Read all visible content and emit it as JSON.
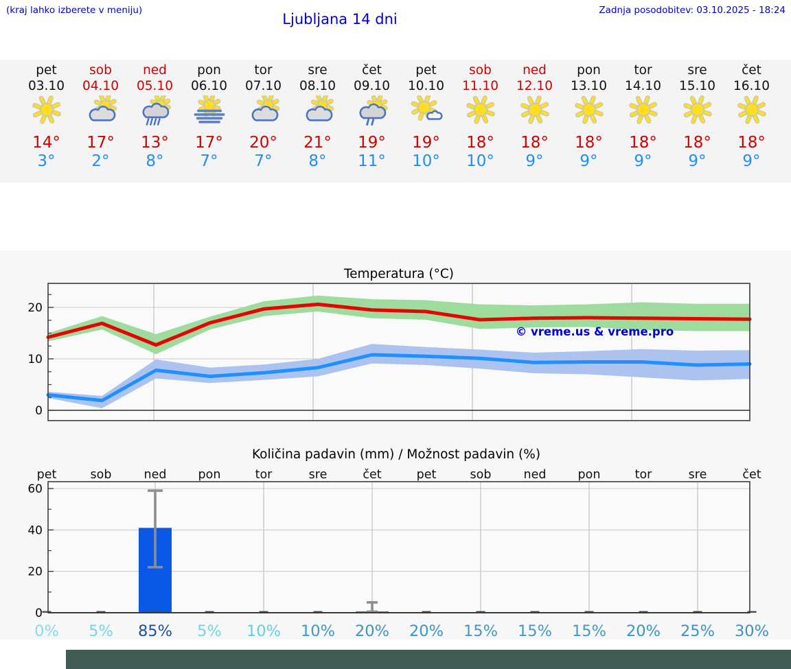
{
  "header": {
    "left_note": "(kraj lahko izberete v meniju)",
    "title": "Ljubljana 14 dni",
    "last_update": "Zadnja posodobitev: 03.10.2025 - 18:24"
  },
  "colors": {
    "header_text": "#0000cc",
    "weekend_text": "#cc0000",
    "tmax_text": "#d40000",
    "tmin_text": "#1e8ff5",
    "strip_bg": "#f4f4f4",
    "charts_bg": "#f7f7f7",
    "max_line": "#ea0000",
    "max_band": "#9edc9e",
    "min_line": "#1e90ff",
    "min_band": "#abc3ee",
    "bar_blue": "#0a58e6",
    "whisker_gray": "#8e8e8e",
    "watermark_blue": "#0000d6",
    "footer_bar": "#3f5d55"
  },
  "days": [
    {
      "name": "pet",
      "date": "03.10",
      "red": false,
      "icon": "sun",
      "tmax": "14°",
      "tmin": "3°"
    },
    {
      "name": "sob",
      "date": "04.10",
      "red": true,
      "icon": "sun-cloud",
      "tmax": "17°",
      "tmin": "2°"
    },
    {
      "name": "ned",
      "date": "05.10",
      "red": true,
      "icon": "sun-cloud-rain",
      "tmax": "13°",
      "tmin": "8°"
    },
    {
      "name": "pon",
      "date": "06.10",
      "red": false,
      "icon": "sun-fog",
      "tmax": "17°",
      "tmin": "7°"
    },
    {
      "name": "tor",
      "date": "07.10",
      "red": false,
      "icon": "sun-cloud",
      "tmax": "20°",
      "tmin": "7°"
    },
    {
      "name": "sre",
      "date": "08.10",
      "red": false,
      "icon": "sun-cloud",
      "tmax": "21°",
      "tmin": "8°"
    },
    {
      "name": "čet",
      "date": "09.10",
      "red": false,
      "icon": "sun-cloud-lightrain",
      "tmax": "19°",
      "tmin": "11°"
    },
    {
      "name": "pet",
      "date": "10.10",
      "red": false,
      "icon": "sun-smallcloud",
      "tmax": "19°",
      "tmin": "10°"
    },
    {
      "name": "sob",
      "date": "11.10",
      "red": true,
      "icon": "sun",
      "tmax": "18°",
      "tmin": "10°"
    },
    {
      "name": "ned",
      "date": "12.10",
      "red": true,
      "icon": "sun",
      "tmax": "18°",
      "tmin": "9°"
    },
    {
      "name": "pon",
      "date": "13.10",
      "red": false,
      "icon": "sun",
      "tmax": "18°",
      "tmin": "9°"
    },
    {
      "name": "tor",
      "date": "14.10",
      "red": false,
      "icon": "sun",
      "tmax": "18°",
      "tmin": "9°"
    },
    {
      "name": "sre",
      "date": "15.10",
      "red": false,
      "icon": "sun",
      "tmax": "18°",
      "tmin": "9°"
    },
    {
      "name": "čet",
      "date": "16.10",
      "red": false,
      "icon": "sun",
      "tmax": "18°",
      "tmin": "9°"
    }
  ],
  "chart_data": [
    {
      "type": "line",
      "title": "Temperatura (°C)",
      "watermark": "© vreme.us & vreme.pro",
      "x": [
        "pet 03.10",
        "sob 04.10",
        "ned 05.10",
        "pon 06.10",
        "tor 07.10",
        "sre 08.10",
        "čet 09.10",
        "pet 10.10",
        "sob 11.10",
        "ned 12.10",
        "pon 13.10",
        "tor 14.10",
        "sre 15.10",
        "čet 16.10"
      ],
      "ylim": [
        -2,
        24.7
      ],
      "yticks": [
        0,
        10,
        20
      ],
      "grid": true,
      "series": [
        {
          "name": "max-temperature",
          "color": "#ea0000",
          "values": [
            14.2,
            16.9,
            12.7,
            17.0,
            19.7,
            20.6,
            19.5,
            19.2,
            17.6,
            17.9,
            18.0,
            17.9,
            17.8,
            17.7
          ]
        },
        {
          "name": "min-temperature",
          "color": "#1e90ff",
          "values": [
            3.0,
            1.9,
            7.8,
            6.6,
            7.3,
            8.3,
            10.8,
            10.5,
            10.1,
            9.3,
            9.4,
            9.4,
            8.8,
            9.0
          ]
        }
      ],
      "bands": [
        {
          "name": "max-temperature-range",
          "color": "#9edc9e",
          "upper": [
            15.0,
            18.3,
            14.8,
            18.2,
            21.2,
            22.3,
            21.6,
            21.4,
            20.6,
            20.4,
            20.6,
            21.0,
            20.7,
            20.7
          ],
          "lower": [
            13.4,
            15.7,
            10.9,
            15.7,
            18.3,
            19.2,
            17.9,
            17.6,
            15.8,
            16.1,
            16.2,
            15.6,
            15.4,
            15.4
          ]
        },
        {
          "name": "min-temperature-range",
          "color": "#abc3ee",
          "upper": [
            3.6,
            2.8,
            9.9,
            8.3,
            8.9,
            10.0,
            12.9,
            12.3,
            11.8,
            11.2,
            11.5,
            11.9,
            11.6,
            11.7
          ],
          "lower": [
            2.4,
            0.4,
            6.2,
            5.3,
            5.9,
            6.6,
            9.1,
            8.8,
            8.1,
            7.2,
            7.0,
            6.4,
            5.8,
            6.1
          ]
        }
      ]
    },
    {
      "type": "bar",
      "title": "Količina padavin (mm) / Možnost padavin (%)",
      "categories": [
        "pet",
        "sob",
        "ned",
        "pon",
        "tor",
        "sre",
        "čet",
        "pet",
        "sob",
        "ned",
        "pon",
        "tor",
        "sre",
        "čet"
      ],
      "values": [
        0,
        0,
        41,
        0,
        0,
        0,
        0.6,
        0,
        0,
        0,
        0,
        0,
        0,
        0
      ],
      "error_low": [
        null,
        null,
        22,
        null,
        null,
        null,
        0.5,
        null,
        null,
        null,
        null,
        null,
        null,
        null
      ],
      "error_high": [
        null,
        null,
        59,
        null,
        null,
        null,
        5,
        null,
        null,
        null,
        null,
        null,
        null,
        null
      ],
      "probabilities": [
        "0%",
        "5%",
        "85%",
        "5%",
        "10%",
        "10%",
        "20%",
        "20%",
        "15%",
        "15%",
        "15%",
        "20%",
        "25%",
        "30%"
      ],
      "probability_colors": [
        "#85dcec",
        "#70d6e8",
        "#1d50a5",
        "#70d6e8",
        "#5fd0e2",
        "#3f9aca",
        "#3b95c6",
        "#3b95c6",
        "#4299c9",
        "#4299c9",
        "#4299c9",
        "#3b95c6",
        "#3b93c5",
        "#3b93c5"
      ],
      "ylim": [
        0,
        63.2
      ],
      "yticks": [
        0,
        20,
        40,
        60
      ],
      "bar_color": "#0a58e6",
      "ylabel": "mm",
      "grid": true
    }
  ]
}
